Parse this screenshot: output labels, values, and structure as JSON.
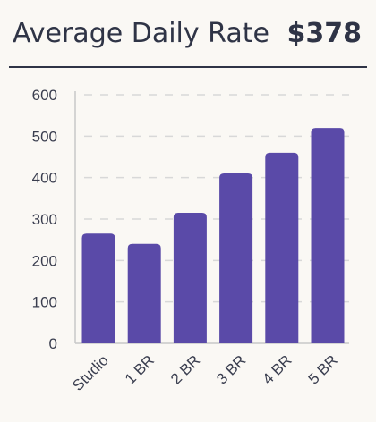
{
  "header": {
    "title": "Average Daily Rate",
    "value": "$378"
  },
  "colors": {
    "bar": "#5a4aa8",
    "text": "#2f3446",
    "grid": "#d8d8d8",
    "axis": "#c8c8c8"
  },
  "chart_data": {
    "type": "bar",
    "categories": [
      "Studio",
      "1 BR",
      "2 BR",
      "3 BR",
      "4 BR",
      "5 BR"
    ],
    "values": [
      265,
      240,
      315,
      410,
      460,
      520
    ],
    "ylim": [
      0,
      600
    ],
    "yticks": [
      0,
      100,
      200,
      300,
      400,
      500,
      600
    ],
    "grid": true,
    "legend": "none"
  }
}
